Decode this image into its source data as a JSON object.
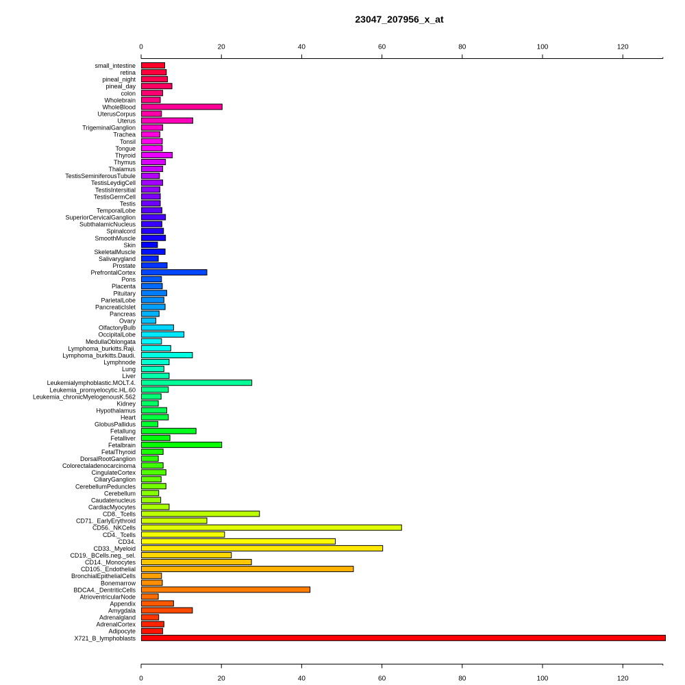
{
  "chart_data": {
    "type": "bar",
    "orientation": "horizontal",
    "title": "23047_207956_x_at",
    "xlabel": "",
    "ylabel": "",
    "xlim": [
      0,
      130
    ],
    "xticks": [
      0,
      20,
      40,
      60,
      80,
      100,
      120
    ],
    "grid": false,
    "legend": "none",
    "categories": [
      "small_intestine",
      "retina",
      "pineal_night",
      "pineal_day",
      "colon",
      "Wholebrain",
      "WholeBlood",
      "UterusCorpus",
      "Uterus",
      "TrigeminalGanglion",
      "Trachea",
      "Tonsil",
      "Tongue",
      "Thyroid",
      "Thymus",
      "Thalamus",
      "TestisSeminiferousTubule",
      "TestisLeydigCell",
      "TestisIntersitial",
      "TestisGermCell",
      "Testis",
      "TemporalLobe",
      "SuperiorCervicalGanglion",
      "SubthalamicNucleus",
      "Spinalcord",
      "SmoothMuscle",
      "Skin",
      "SkeletalMuscle",
      "Salivarygland",
      "Prostate",
      "PrefrontalCortex",
      "Pons",
      "Placenta",
      "Pituitary",
      "ParietalLobe",
      "PancreaticIslet",
      "Pancreas",
      "Ovary",
      "OlfactoryBulb",
      "OccipitalLobe",
      "MedullaOblongata",
      "Lymphoma_burkitts.Raji.",
      "Lymphoma_burkitts.Daudi.",
      "Lymphnode",
      "Lung",
      "Liver",
      "Leukemialymphoblastic.MOLT.4.",
      "Leukemia_promyelocytic.HL.60",
      "Leukemia_chronicMyelogenousK.562",
      "Kidney",
      "Hypothalamus",
      "Heart",
      "GlobusPallidus",
      "Fetallung",
      "Fetalliver",
      "Fetalbrain",
      "FetalThyroid",
      "DorsalRootGanglion",
      "Colorectaladenocarcinoma",
      "CingulateCortex",
      "CiliaryGanglion",
      "CerebellumPeduncles",
      "Cerebellum",
      "Caudatenucleus",
      "CardiacMyocytes",
      "CD8._Tcells",
      "CD71._EarlyErythroid",
      "CD56._NKCells",
      "CD4._Tcells",
      "CD34.",
      "CD33._Myeloid",
      "CD19._BCells.neg._sel.",
      "CD14._Monocytes",
      "CD105._Endothelial",
      "BronchialEpithelialCells",
      "Bonemarrow",
      "BDCA4._DentriticCells",
      "AtrioventricularNode",
      "Appendix",
      "Amygdala",
      "Adrenalgland",
      "AdrenalCortex",
      "Adipocyte",
      "X721_B_lymphoblasts"
    ],
    "values": [
      5.8,
      6.2,
      6.5,
      7.6,
      5.3,
      4.7,
      20.1,
      5.0,
      12.8,
      5.3,
      4.6,
      5.2,
      5.2,
      7.7,
      6.0,
      5.3,
      4.5,
      5.3,
      4.6,
      4.7,
      4.7,
      5.1,
      6.0,
      5.1,
      5.5,
      6.0,
      4.0,
      5.9,
      4.2,
      6.4,
      16.3,
      5.0,
      5.2,
      6.3,
      5.6,
      5.9,
      4.4,
      3.6,
      8.0,
      10.6,
      5.0,
      7.3,
      12.7,
      6.9,
      5.6,
      6.9,
      27.5,
      6.7,
      4.9,
      4.2,
      6.3,
      6.7,
      4.1,
      13.6,
      7.1,
      20.0,
      5.4,
      4.2,
      5.4,
      6.1,
      4.9,
      6.1,
      4.3,
      4.8,
      6.9,
      29.4,
      16.3,
      64.8,
      20.7,
      48.3,
      60.1,
      22.4,
      27.4,
      52.8,
      5.0,
      5.2,
      42.0,
      4.2,
      8.0,
      12.7,
      4.3,
      5.6,
      5.3,
      131.0
    ]
  }
}
